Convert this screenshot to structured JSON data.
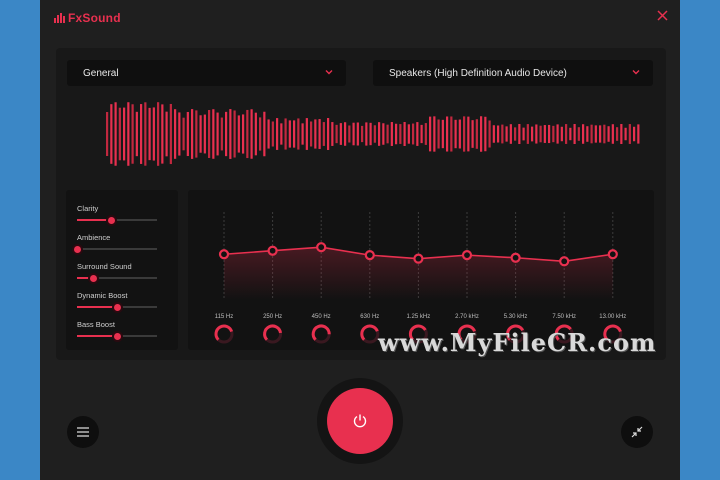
{
  "app": {
    "brand": "FxSound",
    "accent": "#e8304f"
  },
  "preset": {
    "selected": "General"
  },
  "output_device": {
    "selected": "Speakers (High Definition Audio Device)"
  },
  "effects": [
    {
      "label": "Clarity",
      "value": 0.42
    },
    {
      "label": "Ambience",
      "value": 0.0
    },
    {
      "label": "Surround Sound",
      "value": 0.2
    },
    {
      "label": "Dynamic Boost",
      "value": 0.5
    },
    {
      "label": "Bass Boost",
      "value": 0.5
    }
  ],
  "eq": {
    "bands": [
      "115 Hz",
      "250 Hz",
      "450 Hz",
      "630 Hz",
      "1.25 kHz",
      "2.70 kHz",
      "5.30 kHz",
      "7.50 kHz",
      "13.00 kHz"
    ],
    "levels": [
      0.52,
      0.56,
      0.6,
      0.51,
      0.47,
      0.51,
      0.48,
      0.44,
      0.52
    ]
  },
  "watermark": "www.MyFileCR.com",
  "icons": {
    "close": "close-icon",
    "chevron": "chevron-down-icon",
    "power": "power-icon",
    "menu": "menu-icon",
    "minimize": "minimize-icon"
  }
}
